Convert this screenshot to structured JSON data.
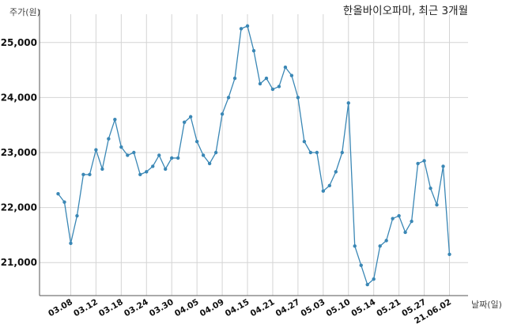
{
  "chart_data": {
    "type": "line",
    "title": "한올바이오파마, 최근 3개월",
    "ylabel": "주가(원)",
    "xlabel": "날짜(일)",
    "ylim": [
      20400,
      25600
    ],
    "yticks": [
      21000,
      22000,
      23000,
      24000,
      25000
    ],
    "ytick_labels": [
      "21,000",
      "22,000",
      "23,000",
      "24,000",
      "25,000"
    ],
    "grid": true,
    "color": "#3a87b5",
    "x_ticks": [
      {
        "label": "03.08",
        "index": 2
      },
      {
        "label": "03.12",
        "index": 6
      },
      {
        "label": "03.18",
        "index": 10
      },
      {
        "label": "03.24",
        "index": 14
      },
      {
        "label": "03.30",
        "index": 18
      },
      {
        "label": "04.05",
        "index": 22
      },
      {
        "label": "04.09",
        "index": 26
      },
      {
        "label": "04.15",
        "index": 30
      },
      {
        "label": "04.21",
        "index": 34
      },
      {
        "label": "04.27",
        "index": 38
      },
      {
        "label": "05.03",
        "index": 42
      },
      {
        "label": "05.10",
        "index": 46
      },
      {
        "label": "05.14",
        "index": 50
      },
      {
        "label": "05.21",
        "index": 54
      },
      {
        "label": "05.27",
        "index": 58
      },
      {
        "label": "21.06.02",
        "index": 62
      }
    ],
    "series": [
      {
        "values": [
          22250,
          22100,
          21350,
          21850,
          22600,
          22600,
          23050,
          22700,
          23250,
          23600,
          23100,
          22950,
          23000,
          22600,
          22650,
          22750,
          22950,
          22700,
          22900,
          22900,
          23550,
          23650,
          23200,
          22950,
          22800,
          23000,
          23700,
          24000,
          24350,
          25250,
          25300,
          24850,
          24250,
          24350,
          24150,
          24200,
          24550,
          24400,
          24000,
          23200,
          23000,
          23000,
          22300,
          22400,
          22650,
          23000,
          23900,
          21300,
          20950,
          20600,
          20700,
          21300,
          21400,
          21800,
          21850,
          21550,
          21750,
          22800,
          22850,
          22350,
          22050,
          22750,
          21150
        ]
      }
    ]
  }
}
